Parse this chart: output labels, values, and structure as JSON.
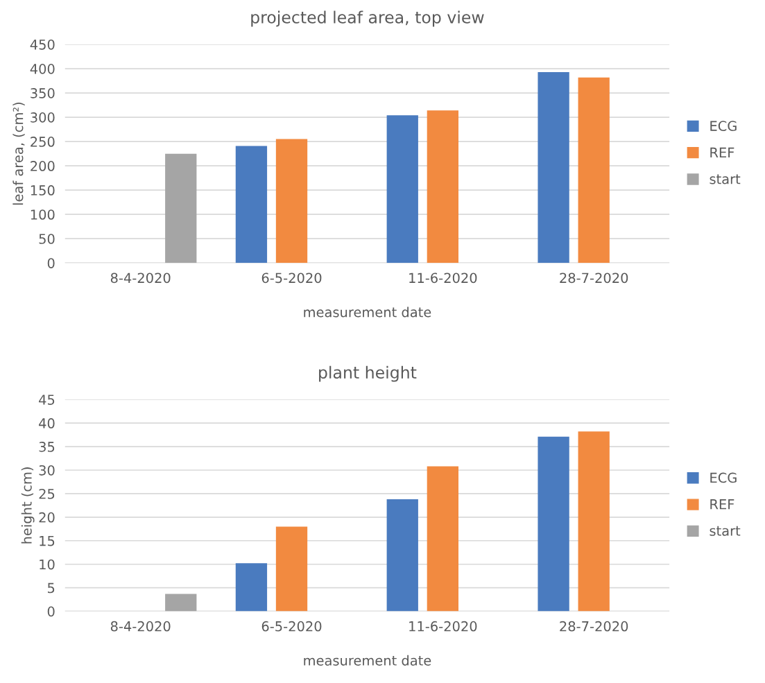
{
  "chart_data": [
    {
      "type": "bar",
      "title": "projected leaf area, top view",
      "xlabel": "measurement date",
      "ylabel": "leaf area, (cm²)",
      "categories": [
        "8-4-2020",
        "6-5-2020",
        "11-6-2020",
        "28-7-2020"
      ],
      "series": [
        {
          "name": "ECG",
          "color": "#4a7bbf",
          "values": [
            null,
            241,
            304,
            393
          ]
        },
        {
          "name": "REF",
          "color": "#f28a40",
          "values": [
            null,
            255,
            314,
            382
          ]
        },
        {
          "name": "start",
          "color": "#a5a5a5",
          "values": [
            225,
            null,
            null,
            null
          ]
        }
      ],
      "ylim": [
        0,
        450
      ],
      "yticks": [
        0,
        50,
        100,
        150,
        200,
        250,
        300,
        350,
        400,
        450
      ],
      "grid": "y",
      "legend": "right"
    },
    {
      "type": "bar",
      "title": "plant height",
      "xlabel": "measurement date",
      "ylabel": "height (cm)",
      "categories": [
        "8-4-2020",
        "6-5-2020",
        "11-6-2020",
        "28-7-2020"
      ],
      "series": [
        {
          "name": "ECG",
          "color": "#4a7bbf",
          "values": [
            null,
            10.2,
            23.8,
            37.1
          ]
        },
        {
          "name": "REF",
          "color": "#f28a40",
          "values": [
            null,
            18.0,
            30.8,
            38.2
          ]
        },
        {
          "name": "start",
          "color": "#a5a5a5",
          "values": [
            3.7,
            null,
            null,
            null
          ]
        }
      ],
      "ylim": [
        0,
        45
      ],
      "yticks": [
        0,
        5,
        10,
        15,
        20,
        25,
        30,
        35,
        40,
        45
      ],
      "grid": "y",
      "legend": "right"
    }
  ]
}
